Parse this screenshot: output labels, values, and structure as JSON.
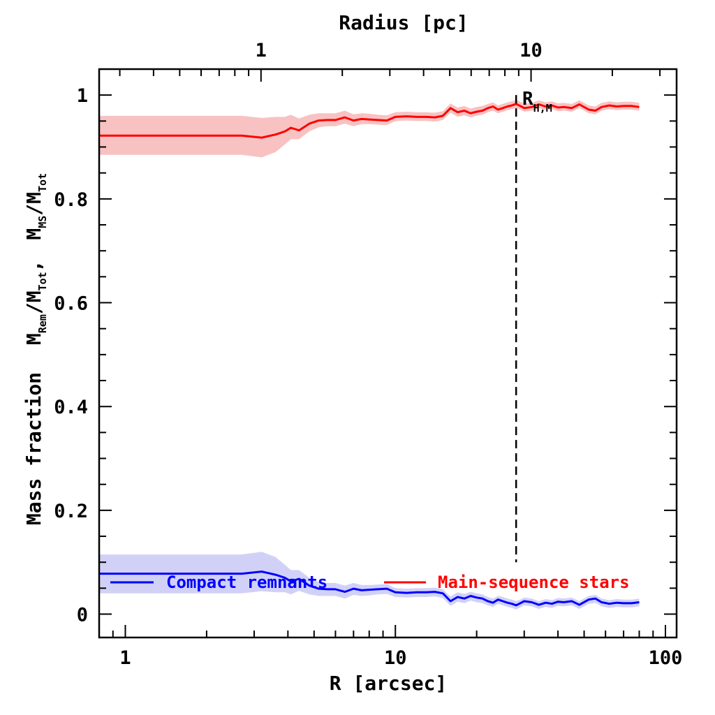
{
  "chart_data": {
    "type": "line",
    "xlabel": "R [arcsec]",
    "ylabel_main": "Mass fraction",
    "ylabel_ratio": {
      "rem": {
        "base": "M",
        "sub": "Rem",
        "den_base": "M",
        "den_sub": "Tot"
      },
      "ms": {
        "base": "M",
        "sub": "MS",
        "den_base": "M",
        "den_sub": "Tot"
      },
      "sep": ","
    },
    "top_xlabel": "Radius [pc]",
    "xscale": "log",
    "xlim": [
      0.8,
      110
    ],
    "ylim": [
      -0.045,
      1.05
    ],
    "x_ticks": [
      1,
      10,
      100
    ],
    "x_tick_labels": [
      "1",
      "10",
      "100"
    ],
    "y_ticks": [
      0,
      0.2,
      0.4,
      0.6,
      0.8,
      1
    ],
    "y_tick_labels": [
      "0",
      "0.2",
      "0.4",
      "0.6",
      "0.8",
      "1"
    ],
    "top_ticks_arcsec": [
      3.18,
      31.8
    ],
    "top_tick_labels": [
      "1",
      "10"
    ],
    "vline": {
      "x": 28,
      "y_range": [
        0.1,
        1.0
      ],
      "label_base": "R",
      "label_sub": "H,M"
    },
    "series": [
      {
        "name": "Main-sequence stars",
        "color": "#ff0000",
        "band_color": "#f7b7b7",
        "x": [
          0.8,
          1.0,
          1.5,
          2.0,
          2.7,
          3.2,
          3.6,
          3.9,
          4.1,
          4.4,
          4.8,
          5.2,
          5.6,
          6.0,
          6.5,
          7.0,
          7.5,
          8.0,
          8.6,
          9.3,
          10.0,
          11.0,
          12.0,
          13.0,
          14.0,
          15.0,
          16.0,
          17.0,
          18.0,
          19.0,
          20.0,
          21.0,
          22.0,
          23.0,
          24.0,
          25.0,
          26.0,
          27.0,
          28.0,
          29.0,
          30.0,
          32.0,
          34.0,
          36.0,
          38.0,
          40.0,
          42.0,
          45.0,
          48.0,
          52.0,
          55.0,
          58.0,
          62.0,
          66.0,
          70.0,
          75.0,
          80.0
        ],
        "y": [
          0.922,
          0.922,
          0.922,
          0.922,
          0.922,
          0.918,
          0.924,
          0.93,
          0.937,
          0.932,
          0.945,
          0.951,
          0.952,
          0.952,
          0.957,
          0.951,
          0.954,
          0.953,
          0.952,
          0.951,
          0.958,
          0.959,
          0.958,
          0.958,
          0.957,
          0.96,
          0.975,
          0.967,
          0.97,
          0.965,
          0.968,
          0.97,
          0.975,
          0.978,
          0.972,
          0.975,
          0.978,
          0.98,
          0.983,
          0.979,
          0.975,
          0.977,
          0.982,
          0.978,
          0.98,
          0.976,
          0.977,
          0.975,
          0.982,
          0.972,
          0.97,
          0.977,
          0.98,
          0.978,
          0.979,
          0.979,
          0.977
        ],
        "lo": [
          0.885,
          0.885,
          0.885,
          0.885,
          0.885,
          0.88,
          0.89,
          0.905,
          0.915,
          0.915,
          0.93,
          0.938,
          0.94,
          0.94,
          0.945,
          0.94,
          0.944,
          0.944,
          0.943,
          0.942,
          0.95,
          0.951,
          0.95,
          0.95,
          0.949,
          0.952,
          0.966,
          0.958,
          0.961,
          0.957,
          0.96,
          0.962,
          0.967,
          0.97,
          0.965,
          0.968,
          0.971,
          0.973,
          0.975,
          0.972,
          0.968,
          0.97,
          0.975,
          0.971,
          0.973,
          0.969,
          0.97,
          0.968,
          0.975,
          0.965,
          0.963,
          0.97,
          0.973,
          0.971,
          0.972,
          0.972,
          0.97
        ],
        "hi": [
          0.96,
          0.96,
          0.96,
          0.96,
          0.96,
          0.956,
          0.958,
          0.958,
          0.962,
          0.955,
          0.962,
          0.965,
          0.965,
          0.965,
          0.97,
          0.963,
          0.965,
          0.964,
          0.962,
          0.961,
          0.967,
          0.968,
          0.967,
          0.967,
          0.966,
          0.969,
          0.984,
          0.976,
          0.979,
          0.974,
          0.977,
          0.979,
          0.983,
          0.986,
          0.98,
          0.983,
          0.986,
          0.988,
          0.991,
          0.987,
          0.983,
          0.985,
          0.99,
          0.986,
          0.988,
          0.984,
          0.985,
          0.983,
          0.99,
          0.98,
          0.978,
          0.985,
          0.988,
          0.986,
          0.987,
          0.987,
          0.985
        ]
      },
      {
        "name": "Compact remnants",
        "color": "#0000ff",
        "band_color": "#c9c9f7",
        "x": [
          0.8,
          1.0,
          1.5,
          2.0,
          2.7,
          3.2,
          3.6,
          3.9,
          4.1,
          4.4,
          4.8,
          5.2,
          5.6,
          6.0,
          6.5,
          7.0,
          7.5,
          8.0,
          8.6,
          9.3,
          10.0,
          11.0,
          12.0,
          13.0,
          14.0,
          15.0,
          16.0,
          17.0,
          18.0,
          19.0,
          20.0,
          21.0,
          22.0,
          23.0,
          24.0,
          25.0,
          26.0,
          27.0,
          28.0,
          29.0,
          30.0,
          32.0,
          34.0,
          36.0,
          38.0,
          40.0,
          42.0,
          45.0,
          48.0,
          52.0,
          55.0,
          58.0,
          62.0,
          66.0,
          70.0,
          75.0,
          80.0
        ],
        "y": [
          0.078,
          0.078,
          0.078,
          0.078,
          0.078,
          0.082,
          0.076,
          0.07,
          0.063,
          0.068,
          0.055,
          0.049,
          0.048,
          0.048,
          0.043,
          0.049,
          0.046,
          0.047,
          0.048,
          0.049,
          0.042,
          0.041,
          0.042,
          0.042,
          0.043,
          0.04,
          0.025,
          0.033,
          0.03,
          0.035,
          0.032,
          0.03,
          0.025,
          0.022,
          0.028,
          0.025,
          0.022,
          0.02,
          0.017,
          0.021,
          0.025,
          0.023,
          0.018,
          0.022,
          0.02,
          0.024,
          0.023,
          0.025,
          0.018,
          0.028,
          0.03,
          0.023,
          0.02,
          0.022,
          0.021,
          0.021,
          0.023
        ],
        "lo": [
          0.04,
          0.04,
          0.04,
          0.04,
          0.04,
          0.044,
          0.042,
          0.042,
          0.038,
          0.045,
          0.038,
          0.035,
          0.035,
          0.035,
          0.03,
          0.037,
          0.035,
          0.036,
          0.038,
          0.039,
          0.033,
          0.032,
          0.033,
          0.033,
          0.034,
          0.031,
          0.016,
          0.024,
          0.021,
          0.026,
          0.023,
          0.021,
          0.017,
          0.014,
          0.02,
          0.017,
          0.014,
          0.012,
          0.009,
          0.013,
          0.017,
          0.015,
          0.01,
          0.014,
          0.012,
          0.016,
          0.015,
          0.017,
          0.01,
          0.02,
          0.022,
          0.015,
          0.012,
          0.014,
          0.013,
          0.013,
          0.015
        ],
        "hi": [
          0.115,
          0.115,
          0.115,
          0.115,
          0.115,
          0.12,
          0.11,
          0.095,
          0.085,
          0.085,
          0.07,
          0.062,
          0.06,
          0.06,
          0.055,
          0.06,
          0.056,
          0.056,
          0.057,
          0.058,
          0.05,
          0.049,
          0.05,
          0.05,
          0.051,
          0.048,
          0.034,
          0.042,
          0.039,
          0.043,
          0.04,
          0.038,
          0.033,
          0.03,
          0.035,
          0.033,
          0.03,
          0.028,
          0.025,
          0.028,
          0.032,
          0.03,
          0.025,
          0.029,
          0.027,
          0.031,
          0.03,
          0.032,
          0.025,
          0.035,
          0.037,
          0.03,
          0.027,
          0.029,
          0.028,
          0.028,
          0.03
        ]
      }
    ],
    "legend": [
      {
        "name": "Compact remnants",
        "color": "#0000ff"
      },
      {
        "name": "Main-sequence stars",
        "color": "#ff0000"
      }
    ],
    "legend_placement": "bottom-inside",
    "grid": false
  }
}
